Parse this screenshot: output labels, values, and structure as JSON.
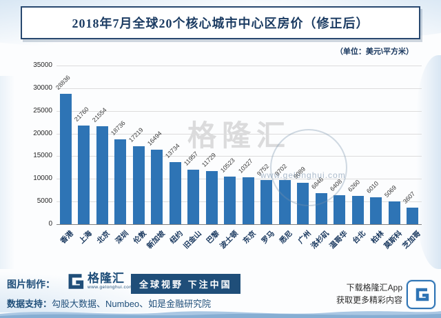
{
  "title": "2018年7月全球20个核心城市中心区房价（修正后）",
  "unit_label": "（单位：美元\\平方米）",
  "chart_data": {
    "type": "bar",
    "title": "2018年7月全球20个核心城市中心区房价（修正后）",
    "unit": "美元\\平方米",
    "categories": [
      "香港",
      "上海",
      "北京",
      "深圳",
      "伦敦",
      "新加坡",
      "纽约",
      "旧金山",
      "巴黎",
      "波士顿",
      "东京",
      "罗马",
      "悉尼",
      "广州",
      "洛杉矶",
      "温哥华",
      "台北",
      "柏林",
      "莫斯科",
      "芝加哥"
    ],
    "values": [
      28836,
      21760,
      21554,
      18736,
      17219,
      16494,
      13734,
      11957,
      11729,
      10523,
      10327,
      9752,
      9702,
      9089,
      6846,
      6408,
      6260,
      6010,
      5069,
      3607
    ],
    "xlabel": "",
    "ylabel": "",
    "ylim": [
      0,
      35000
    ],
    "yticks": [
      0,
      5000,
      10000,
      15000,
      20000,
      25000,
      30000,
      35000
    ],
    "grid": true,
    "legend": false,
    "bar_color": "#2e74b5",
    "value_labels_shown": true
  },
  "watermark": {
    "brand": "格隆汇",
    "url": "www.gelonghui.com"
  },
  "footer": {
    "credit_label": "图片制作：",
    "brand_name": "格隆汇",
    "brand_url": "www.gelonghui.com",
    "slogan": "全球视野 下注中国",
    "data_support_label": "数据支持：",
    "data_support": "勾股大数据、Numbeo、如是金融研究院",
    "app_line1": "下载格隆汇App",
    "app_line2": "获取更多精彩内容"
  },
  "colors": {
    "bar": "#2e74b5",
    "navy": "#1f4e79",
    "title_text": "#1c3c63",
    "grid": "#dcdcdc",
    "decor_blue": "#b2cfe9"
  }
}
